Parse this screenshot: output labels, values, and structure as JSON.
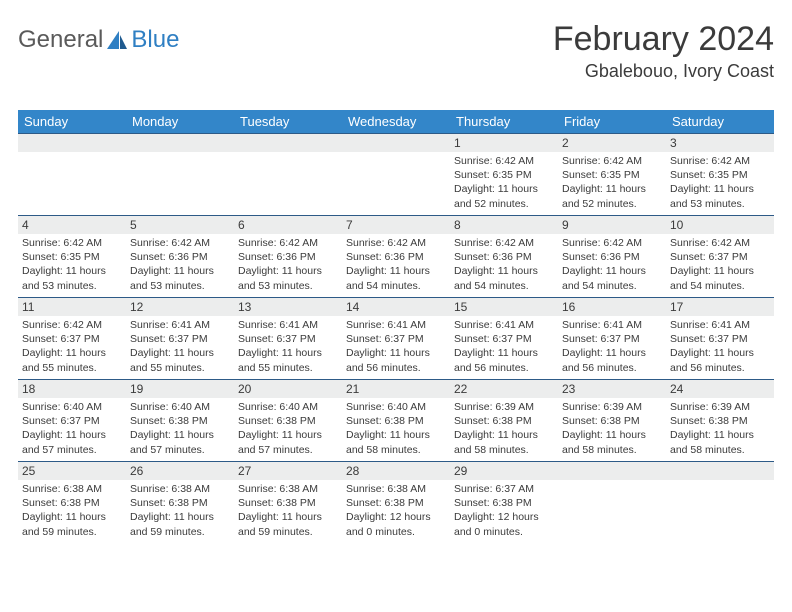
{
  "logo": {
    "part1": "General",
    "part2": "Blue"
  },
  "title": "February 2024",
  "location": "Gbalebouo, Ivory Coast",
  "colors": {
    "header_bg": "#3386c9",
    "header_text": "#ffffff",
    "daynum_bg": "#eceded",
    "text": "#3b3b3b",
    "row_border": "#2d5a87",
    "logo_gray": "#5a5a5a",
    "logo_blue": "#2f7fc3"
  },
  "typography": {
    "title_fontsize": 34,
    "location_fontsize": 18,
    "header_fontsize": 13,
    "daynum_fontsize": 12,
    "detail_fontsize": 10.5
  },
  "day_headers": [
    "Sunday",
    "Monday",
    "Tuesday",
    "Wednesday",
    "Thursday",
    "Friday",
    "Saturday"
  ],
  "weeks": [
    [
      null,
      null,
      null,
      null,
      {
        "n": "1",
        "sr": "6:42 AM",
        "ss": "6:35 PM",
        "dl": "11 hours and 52 minutes."
      },
      {
        "n": "2",
        "sr": "6:42 AM",
        "ss": "6:35 PM",
        "dl": "11 hours and 52 minutes."
      },
      {
        "n": "3",
        "sr": "6:42 AM",
        "ss": "6:35 PM",
        "dl": "11 hours and 53 minutes."
      }
    ],
    [
      {
        "n": "4",
        "sr": "6:42 AM",
        "ss": "6:35 PM",
        "dl": "11 hours and 53 minutes."
      },
      {
        "n": "5",
        "sr": "6:42 AM",
        "ss": "6:36 PM",
        "dl": "11 hours and 53 minutes."
      },
      {
        "n": "6",
        "sr": "6:42 AM",
        "ss": "6:36 PM",
        "dl": "11 hours and 53 minutes."
      },
      {
        "n": "7",
        "sr": "6:42 AM",
        "ss": "6:36 PM",
        "dl": "11 hours and 54 minutes."
      },
      {
        "n": "8",
        "sr": "6:42 AM",
        "ss": "6:36 PM",
        "dl": "11 hours and 54 minutes."
      },
      {
        "n": "9",
        "sr": "6:42 AM",
        "ss": "6:36 PM",
        "dl": "11 hours and 54 minutes."
      },
      {
        "n": "10",
        "sr": "6:42 AM",
        "ss": "6:37 PM",
        "dl": "11 hours and 54 minutes."
      }
    ],
    [
      {
        "n": "11",
        "sr": "6:42 AM",
        "ss": "6:37 PM",
        "dl": "11 hours and 55 minutes."
      },
      {
        "n": "12",
        "sr": "6:41 AM",
        "ss": "6:37 PM",
        "dl": "11 hours and 55 minutes."
      },
      {
        "n": "13",
        "sr": "6:41 AM",
        "ss": "6:37 PM",
        "dl": "11 hours and 55 minutes."
      },
      {
        "n": "14",
        "sr": "6:41 AM",
        "ss": "6:37 PM",
        "dl": "11 hours and 56 minutes."
      },
      {
        "n": "15",
        "sr": "6:41 AM",
        "ss": "6:37 PM",
        "dl": "11 hours and 56 minutes."
      },
      {
        "n": "16",
        "sr": "6:41 AM",
        "ss": "6:37 PM",
        "dl": "11 hours and 56 minutes."
      },
      {
        "n": "17",
        "sr": "6:41 AM",
        "ss": "6:37 PM",
        "dl": "11 hours and 56 minutes."
      }
    ],
    [
      {
        "n": "18",
        "sr": "6:40 AM",
        "ss": "6:37 PM",
        "dl": "11 hours and 57 minutes."
      },
      {
        "n": "19",
        "sr": "6:40 AM",
        "ss": "6:38 PM",
        "dl": "11 hours and 57 minutes."
      },
      {
        "n": "20",
        "sr": "6:40 AM",
        "ss": "6:38 PM",
        "dl": "11 hours and 57 minutes."
      },
      {
        "n": "21",
        "sr": "6:40 AM",
        "ss": "6:38 PM",
        "dl": "11 hours and 58 minutes."
      },
      {
        "n": "22",
        "sr": "6:39 AM",
        "ss": "6:38 PM",
        "dl": "11 hours and 58 minutes."
      },
      {
        "n": "23",
        "sr": "6:39 AM",
        "ss": "6:38 PM",
        "dl": "11 hours and 58 minutes."
      },
      {
        "n": "24",
        "sr": "6:39 AM",
        "ss": "6:38 PM",
        "dl": "11 hours and 58 minutes."
      }
    ],
    [
      {
        "n": "25",
        "sr": "6:38 AM",
        "ss": "6:38 PM",
        "dl": "11 hours and 59 minutes."
      },
      {
        "n": "26",
        "sr": "6:38 AM",
        "ss": "6:38 PM",
        "dl": "11 hours and 59 minutes."
      },
      {
        "n": "27",
        "sr": "6:38 AM",
        "ss": "6:38 PM",
        "dl": "11 hours and 59 minutes."
      },
      {
        "n": "28",
        "sr": "6:38 AM",
        "ss": "6:38 PM",
        "dl": "12 hours and 0 minutes."
      },
      {
        "n": "29",
        "sr": "6:37 AM",
        "ss": "6:38 PM",
        "dl": "12 hours and 0 minutes."
      },
      null,
      null
    ]
  ],
  "labels": {
    "sunrise": "Sunrise:",
    "sunset": "Sunset:",
    "daylight": "Daylight:"
  }
}
